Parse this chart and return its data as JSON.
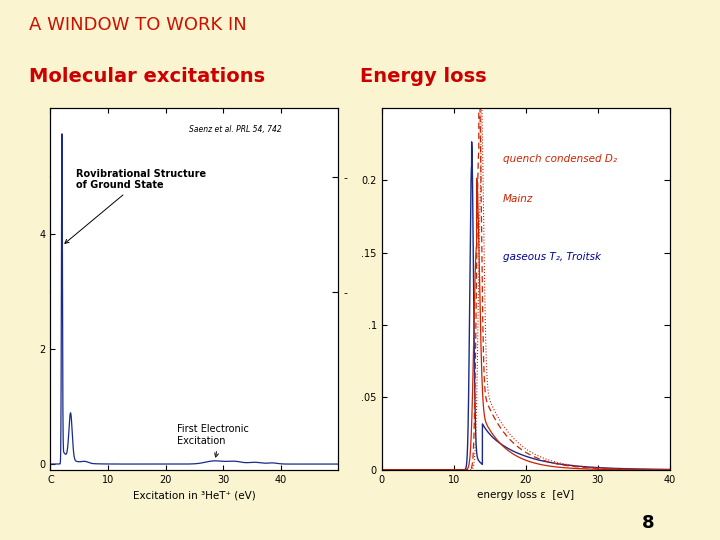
{
  "title": "A WINDOW TO WORK IN",
  "title_color": "#CC1100",
  "title_fontsize": 13,
  "bg_color": "#FAF5D0",
  "left_heading": "Molecular excitations",
  "right_heading": "Energy loss",
  "heading_color": "#CC0000",
  "heading_fontsize": 14,
  "page_number": "8",
  "left_ref": "Saenz et al. PRL 54, 742",
  "left_annot1": "Rovibrational Structure\nof Ground State",
  "left_annot2": "First Electronic\nExcitation",
  "left_xlabel": "Excitation in ³HeT⁺ (eV)",
  "right_xlabel": "energy loss ε  [eV]",
  "right_annot1": "quench condensed D₂",
  "right_annot2": "Mainz",
  "right_annot3": "gaseous T₂, Troitsk",
  "right_annot1_color": "#CC2200",
  "right_annot3_color": "#000099",
  "dark_bar_color": "#6B0000",
  "plot_line_blue": "#1a2a8a",
  "plot_line_red": "#CC2200"
}
